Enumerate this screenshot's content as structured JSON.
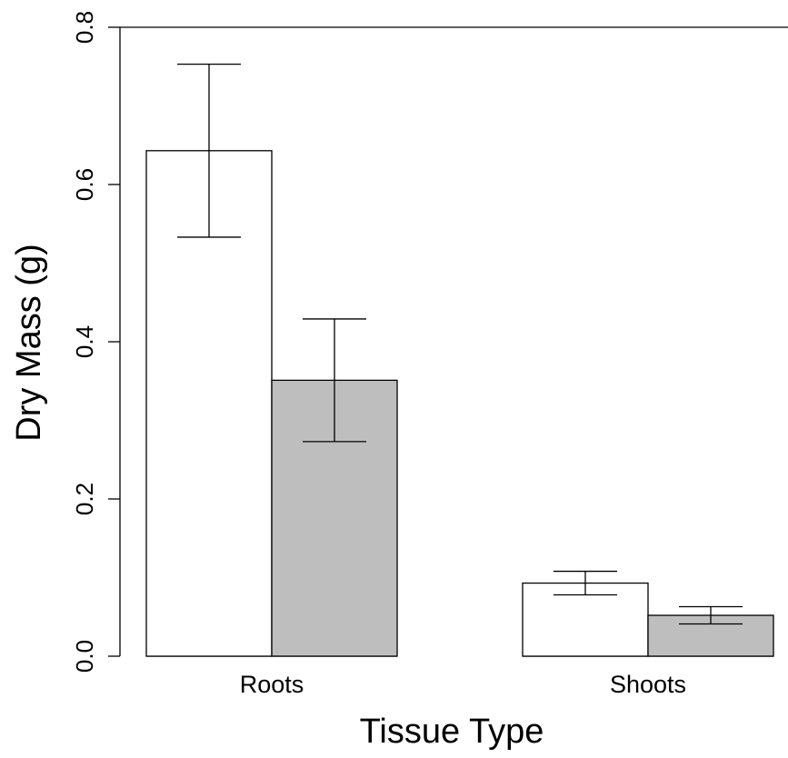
{
  "chart_data": {
    "type": "bar",
    "categories": [
      "Roots",
      "Shoots"
    ],
    "series": [
      {
        "color": "#ffffff",
        "values": [
          0.643,
          0.093
        ],
        "err_low": [
          0.533,
          0.078
        ],
        "err_high": [
          0.753,
          0.108
        ]
      },
      {
        "color": "#bebebe",
        "values": [
          0.351,
          0.052
        ],
        "err_low": [
          0.273,
          0.041
        ],
        "err_high": [
          0.429,
          0.063
        ]
      }
    ],
    "xlabel": "Tissue Type",
    "ylabel": "Dry Mass (g)",
    "ylim": [
      0,
      0.8
    ],
    "yticks": [
      "0.0",
      "0.2",
      "0.4",
      "0.6",
      "0.8"
    ],
    "grid": false,
    "legend": "none"
  }
}
